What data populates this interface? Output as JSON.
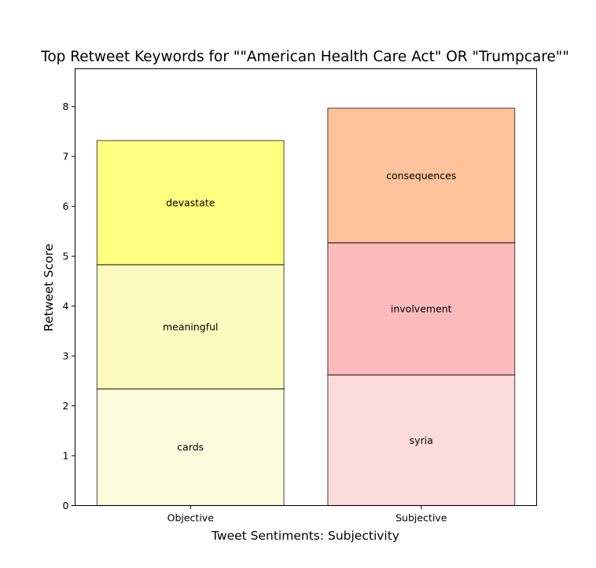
{
  "chart_data": {
    "type": "bar",
    "stacked": true,
    "title": "Top Retweet Keywords for \"\"American Health Care Act\" OR \"Trumpcare\"\"",
    "xlabel": "Tweet Sentiments: Subjectivity",
    "ylabel": "Retweet Score",
    "ylim": [
      0,
      8.76
    ],
    "yticks": [
      "0",
      "1",
      "2",
      "3",
      "4",
      "5",
      "6",
      "7",
      "8"
    ],
    "grid": false,
    "categories": [
      "Objective",
      "Subjective"
    ],
    "stacks": [
      {
        "category": "Objective",
        "segments": [
          {
            "label": "cards",
            "value": 2.34,
            "color": "#fafab9"
          },
          {
            "label": "meaningful",
            "value": 2.49,
            "color": "#f7f77f"
          },
          {
            "label": "devastate",
            "value": 2.49,
            "color": "#ffff00"
          }
        ]
      },
      {
        "category": "Subjective",
        "segments": [
          {
            "label": "syria",
            "value": 2.62,
            "color": "#fcb8b8"
          },
          {
            "label": "involvement",
            "value": 2.65,
            "color": "#fa7878"
          },
          {
            "label": "consequences",
            "value": 2.7,
            "color": "#fb8633"
          }
        ]
      }
    ]
  }
}
